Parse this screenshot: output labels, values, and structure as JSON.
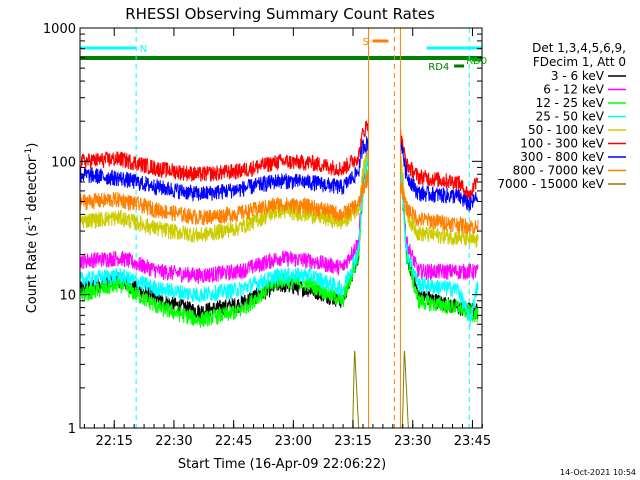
{
  "chart_data": {
    "type": "line",
    "title": "RHESSI Observing Summary Count Rates",
    "xlabel": "Start Time (16-Apr-09 22:06:22)",
    "ylabel_main": "Count Rate (s",
    "ylabel_sup1": "-1",
    "ylabel_mid": " detector",
    "ylabel_sup2": "-1",
    "ylabel_end": ")",
    "yscale": "log",
    "ylim": [
      1,
      1000
    ],
    "xlim_minutes": [
      0,
      101
    ],
    "xticks": [
      {
        "label": "22:15",
        "min": 8.6
      },
      {
        "label": "22:30",
        "min": 23.6
      },
      {
        "label": "22:45",
        "min": 38.6
      },
      {
        "label": "23:00",
        "min": 53.6
      },
      {
        "label": "23:15",
        "min": 68.6
      },
      {
        "label": "23:30",
        "min": 83.6
      },
      {
        "label": "23:45",
        "min": 98.6
      }
    ],
    "yticks": [
      {
        "label": "1",
        "value": 1
      },
      {
        "label": "10",
        "value": 10
      },
      {
        "label": "100",
        "value": 100
      },
      {
        "label": "1000",
        "value": 1000
      }
    ],
    "timestamp": "14-Oct-2021 10:54",
    "legend_header": [
      "Det 1,3,4,5,6,9,",
      "FDecim 1, Att 0"
    ],
    "gaps_minutes": [
      [
        72.5,
        80.5
      ]
    ],
    "series": [
      {
        "name": "3 - 6 keV",
        "color": "#000000",
        "points": [
          [
            0,
            11
          ],
          [
            10,
            13
          ],
          [
            20,
            9
          ],
          [
            30,
            7.5
          ],
          [
            40,
            8.5
          ],
          [
            50,
            12
          ],
          [
            58,
            11
          ],
          [
            66,
            9
          ],
          [
            70,
            20
          ],
          [
            71,
            60
          ],
          [
            72.5,
            120
          ],
          [
            80.5,
            100
          ],
          [
            82,
            20
          ],
          [
            85,
            10
          ],
          [
            95,
            8
          ],
          [
            100,
            7.5
          ]
        ]
      },
      {
        "name": "6 - 12 keV",
        "color": "#ff00ff",
        "points": [
          [
            0,
            18
          ],
          [
            10,
            19
          ],
          [
            20,
            15
          ],
          [
            30,
            14
          ],
          [
            40,
            15
          ],
          [
            50,
            19
          ],
          [
            58,
            18
          ],
          [
            66,
            16
          ],
          [
            70,
            25
          ],
          [
            71,
            70
          ],
          [
            72.5,
            130
          ],
          [
            80.5,
            110
          ],
          [
            82,
            25
          ],
          [
            85,
            15
          ],
          [
            95,
            15
          ],
          [
            100,
            15
          ]
        ]
      },
      {
        "name": "12 - 25 keV",
        "color": "#00ff00",
        "points": [
          [
            0,
            10
          ],
          [
            10,
            12
          ],
          [
            20,
            8
          ],
          [
            30,
            6.5
          ],
          [
            40,
            7.5
          ],
          [
            50,
            13
          ],
          [
            58,
            12
          ],
          [
            66,
            9
          ],
          [
            70,
            20
          ],
          [
            71,
            60
          ],
          [
            72.5,
            110
          ],
          [
            80.5,
            100
          ],
          [
            82,
            20
          ],
          [
            85,
            9
          ],
          [
            95,
            8
          ],
          [
            100,
            7
          ]
        ]
      },
      {
        "name": "25 - 50 keV",
        "color": "#00ffff",
        "points": [
          [
            0,
            13
          ],
          [
            10,
            14
          ],
          [
            20,
            11
          ],
          [
            30,
            10
          ],
          [
            40,
            11
          ],
          [
            50,
            14
          ],
          [
            58,
            14
          ],
          [
            66,
            11
          ],
          [
            70,
            22
          ],
          [
            71,
            60
          ],
          [
            72.5,
            120
          ],
          [
            80.5,
            100
          ],
          [
            82,
            22
          ],
          [
            85,
            12
          ],
          [
            95,
            11
          ],
          [
            98,
            6.5
          ],
          [
            100,
            12
          ]
        ]
      },
      {
        "name": "50 - 100 keV",
        "color": "#cccc00",
        "points": [
          [
            0,
            36
          ],
          [
            10,
            38
          ],
          [
            20,
            31
          ],
          [
            30,
            28
          ],
          [
            40,
            32
          ],
          [
            50,
            43
          ],
          [
            58,
            40
          ],
          [
            66,
            35
          ],
          [
            70,
            45
          ],
          [
            71,
            80
          ],
          [
            72.5,
            130
          ],
          [
            80.5,
            120
          ],
          [
            82,
            40
          ],
          [
            85,
            29
          ],
          [
            95,
            27
          ],
          [
            100,
            25
          ]
        ]
      },
      {
        "name": "100 - 300 keV",
        "color": "#ff0000",
        "points": [
          [
            0,
            100
          ],
          [
            10,
            105
          ],
          [
            20,
            88
          ],
          [
            30,
            80
          ],
          [
            40,
            85
          ],
          [
            50,
            100
          ],
          [
            58,
            98
          ],
          [
            66,
            88
          ],
          [
            70,
            110
          ],
          [
            71,
            160
          ],
          [
            72.5,
            200
          ],
          [
            80.5,
            160
          ],
          [
            82,
            95
          ],
          [
            85,
            77
          ],
          [
            95,
            70
          ],
          [
            98,
            55
          ],
          [
            100,
            80
          ]
        ]
      },
      {
        "name": "300 - 800 keV",
        "color": "#0000ff",
        "points": [
          [
            0,
            80
          ],
          [
            10,
            75
          ],
          [
            20,
            64
          ],
          [
            30,
            57
          ],
          [
            40,
            62
          ],
          [
            50,
            72
          ],
          [
            58,
            70
          ],
          [
            66,
            64
          ],
          [
            70,
            85
          ],
          [
            71,
            130
          ],
          [
            72.5,
            140
          ],
          [
            80.5,
            150
          ],
          [
            82,
            80
          ],
          [
            85,
            58
          ],
          [
            95,
            55
          ],
          [
            98,
            47
          ],
          [
            100,
            55
          ]
        ]
      },
      {
        "name": "800 - 7000 keV",
        "color": "#ff8000",
        "points": [
          [
            0,
            50
          ],
          [
            10,
            52
          ],
          [
            20,
            43
          ],
          [
            30,
            38
          ],
          [
            40,
            41
          ],
          [
            50,
            48
          ],
          [
            58,
            46
          ],
          [
            66,
            40
          ],
          [
            70,
            48
          ],
          [
            71,
            60
          ],
          [
            72.5,
            80
          ],
          [
            80.5,
            70
          ],
          [
            82,
            45
          ],
          [
            85,
            37
          ],
          [
            95,
            34
          ],
          [
            100,
            32
          ]
        ]
      },
      {
        "name": "7000 - 15000 keV",
        "color": "#808000",
        "points": [
          [
            68.5,
            1
          ],
          [
            69,
            4
          ],
          [
            69.5,
            2
          ],
          [
            70,
            1
          ],
          [
            81,
            1
          ],
          [
            81.5,
            4
          ],
          [
            82,
            2
          ],
          [
            82.5,
            1
          ]
        ]
      }
    ],
    "flags": [
      {
        "label": "N",
        "color": "#00ffff",
        "segments": [
          [
            0,
            14.1
          ],
          [
            87.1,
            101
          ]
        ],
        "row": 0,
        "label_at": 15
      },
      {
        "label": "S",
        "color": "#ff8000",
        "segments": [
          [
            73.5,
            77.5
          ]
        ],
        "row": -1,
        "label_at": 71
      },
      {
        "label": "RD0",
        "color": "#00aa00",
        "segments": [
          [
            98.5,
            101
          ]
        ],
        "row": 1,
        "label_at": 97
      },
      {
        "label": "RD4",
        "color": "#007700",
        "segments": [
          [
            94,
            96.5
          ]
        ],
        "row": 2,
        "label_at": 87.5
      }
    ],
    "green_bar": {
      "color": "#008000",
      "range": [
        0,
        101
      ]
    },
    "vlines": [
      {
        "min": 14.1,
        "color": "#00ffff"
      },
      {
        "min": 79.0,
        "color": "#ff8000"
      },
      {
        "min": 97.8,
        "color": "#00ffff"
      }
    ]
  }
}
